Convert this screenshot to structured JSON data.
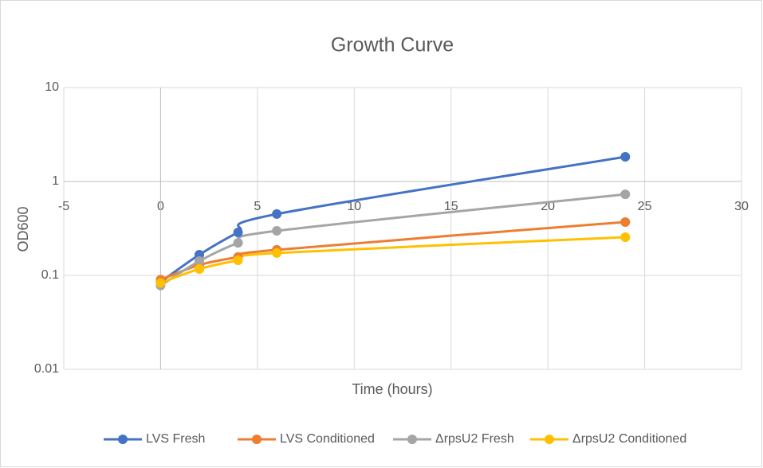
{
  "chart_data": {
    "type": "line",
    "title": "Growth Curve",
    "xlabel": "Time (hours)",
    "ylabel": "OD600",
    "x": [
      0,
      2,
      4,
      6,
      24
    ],
    "series": [
      {
        "name": "LVS Fresh",
        "color": "#4472c4",
        "values": [
          0.085,
          0.166,
          0.287,
          0.45,
          1.83
        ]
      },
      {
        "name": "LVS Conditioned",
        "color": "#ed7d31",
        "values": [
          0.09,
          0.129,
          0.157,
          0.187,
          0.37
        ]
      },
      {
        "name": "ΔrpsU2 Fresh",
        "color": "#a5a5a5",
        "values": [
          0.078,
          0.142,
          0.222,
          0.298,
          0.73
        ]
      },
      {
        "name": "ΔrpsU2 Conditioned",
        "color": "#ffc000",
        "values": [
          0.083,
          0.117,
          0.145,
          0.173,
          0.255
        ]
      }
    ],
    "xlim": [
      -5,
      30
    ],
    "xticks": [
      -5,
      0,
      5,
      10,
      15,
      20,
      25,
      30
    ],
    "ylim": [
      0.01,
      10
    ],
    "yticks": [
      0.01,
      0.1,
      1,
      10
    ],
    "ylog": true,
    "grid": true,
    "smooth": true,
    "x_axis_crosses_y": 1,
    "y_axis_crosses_x": 0,
    "legend": "bottom"
  }
}
